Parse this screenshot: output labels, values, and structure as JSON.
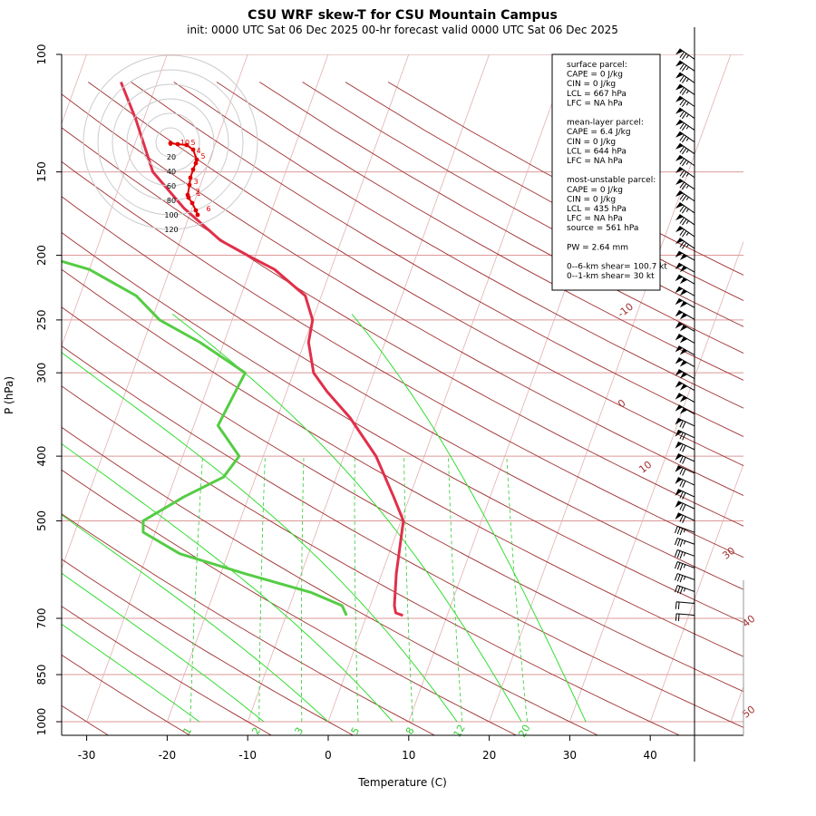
{
  "chart_data": {
    "type": "line",
    "title": "CSU WRF skew-T for CSU Mountain Campus",
    "subtitle": "init: 0000 UTC Sat 06 Dec 2025    00-hr forecast valid 0000 UTC Sat 06 Dec 2025",
    "xlabel": "Temperature (C)",
    "ylabel": "P (hPa)",
    "x_ticks": [
      -30,
      -20,
      -10,
      0,
      10,
      20,
      30,
      40
    ],
    "p_ticks": [
      100,
      150,
      200,
      250,
      300,
      400,
      500,
      700,
      850,
      1000
    ],
    "isotherm_labels": [
      "-10",
      "0",
      "10",
      "30",
      "40",
      "50"
    ],
    "mixing_ratio_labels": [
      "1",
      "2",
      "3",
      "5",
      "8",
      "12",
      "20"
    ],
    "series": [
      {
        "name": "temperature",
        "color": "#e0304a",
        "points": [
          [
            693,
            4.5
          ],
          [
            687,
            3.5
          ],
          [
            670,
            3.0
          ],
          [
            600,
            1.8
          ],
          [
            500,
            0.3
          ],
          [
            460,
            -2.0
          ],
          [
            400,
            -6.0
          ],
          [
            350,
            -11.0
          ],
          [
            320,
            -15.0
          ],
          [
            300,
            -17.5
          ],
          [
            270,
            -19.5
          ],
          [
            250,
            -20.0
          ],
          [
            230,
            -22.0
          ],
          [
            210,
            -27.0
          ],
          [
            200,
            -31.0
          ],
          [
            190,
            -35.0
          ],
          [
            170,
            -41.0
          ],
          [
            150,
            -46.5
          ],
          [
            125,
            -51.0
          ],
          [
            110,
            -54.5
          ]
        ]
      },
      {
        "name": "dewpoint",
        "color": "#55cc44",
        "points": [
          [
            693,
            -2.5
          ],
          [
            670,
            -3.5
          ],
          [
            640,
            -8.0
          ],
          [
            600,
            -17.0
          ],
          [
            560,
            -26.0
          ],
          [
            520,
            -31.5
          ],
          [
            500,
            -32.0
          ],
          [
            460,
            -28.0
          ],
          [
            430,
            -24.0
          ],
          [
            400,
            -23.0
          ],
          [
            360,
            -27.0
          ],
          [
            300,
            -26.0
          ],
          [
            270,
            -33.0
          ],
          [
            250,
            -39.0
          ],
          [
            230,
            -43.0
          ],
          [
            210,
            -50.0
          ],
          [
            195,
            -60.0
          ],
          [
            180,
            -65.0
          ],
          [
            165,
            -67.0
          ],
          [
            150,
            -71.0
          ]
        ]
      }
    ],
    "hodograph": {
      "ring_labels": [
        "20",
        "40",
        "60",
        "80",
        "100",
        "120"
      ],
      "color": "#e00000",
      "point_labels": [
        "0",
        "10",
        "5",
        "4",
        "5",
        "3",
        "2",
        "1",
        "6"
      ]
    },
    "info_box": [
      "surface parcel:",
      "CAPE = 0 J/kg",
      "CIN = 0 J/kg",
      "LCL = 667 hPa",
      "LFC = NA hPa",
      "",
      "mean-layer parcel:",
      "CAPE = 6.4 J/kg",
      "CIN = 0 J/kg",
      "LCL = 644 hPa",
      "LFC = NA hPa",
      "",
      "most-unstable parcel:",
      "CAPE = 0 J/kg",
      "CIN = 0 J/kg",
      "LCL = 435 hPa",
      "LFC = NA hPa",
      "source = 561 hPa",
      "",
      "PW =  2.64 mm",
      "",
      "0--6-km shear= 100.7 kt",
      "0--1-km shear= 30 kt"
    ],
    "colors": {
      "isotherm": "#a03030",
      "dry_adiabat": "#a03030",
      "moist_adiabat": "#33dd33",
      "mixing_ratio": "#33cc33",
      "isobar": "#dd9999"
    },
    "grid": true,
    "legend": "top-right"
  }
}
